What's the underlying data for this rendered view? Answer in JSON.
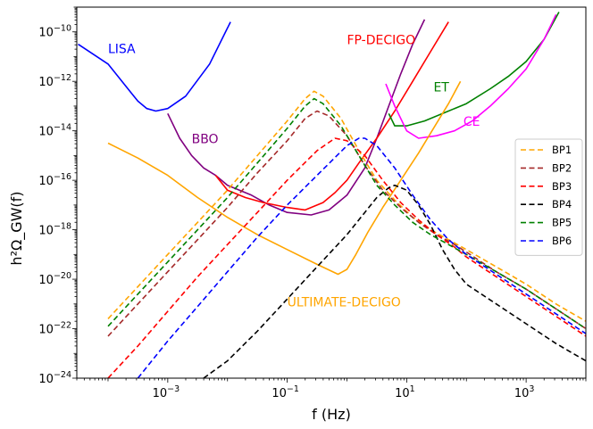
{
  "chart_data": {
    "type": "line",
    "xlabel": "f (Hz)",
    "ylabel": "h²Ω_GW(f)",
    "xscale": "log",
    "yscale": "log",
    "xlim": [
      3e-05,
      10000
    ],
    "ylim": [
      1e-24,
      1e-09
    ],
    "xticks": [
      {
        "value": 0.001,
        "base": "10",
        "exp": "−3"
      },
      {
        "value": 0.1,
        "base": "10",
        "exp": "−1"
      },
      {
        "value": 10,
        "base": "10",
        "exp": "1"
      },
      {
        "value": 1000,
        "base": "10",
        "exp": "3"
      }
    ],
    "yticks": [
      {
        "value": 1e-24,
        "base": "10",
        "exp": "−24"
      },
      {
        "value": 1e-22,
        "base": "10",
        "exp": "−22"
      },
      {
        "value": 1e-20,
        "base": "10",
        "exp": "−20"
      },
      {
        "value": 1e-18,
        "base": "10",
        "exp": "−18"
      },
      {
        "value": 1e-16,
        "base": "10",
        "exp": "−16"
      },
      {
        "value": 1e-14,
        "base": "10",
        "exp": "−14"
      },
      {
        "value": 1e-12,
        "base": "10",
        "exp": "−12"
      },
      {
        "value": 1e-10,
        "base": "10",
        "exp": "−10"
      }
    ],
    "legend_position": "center-right",
    "series": [
      {
        "name": "LISA",
        "label": "LISA",
        "color": "#0000ff",
        "style": "solid",
        "log10_x": [
          -4.5,
          -4.0,
          -3.6,
          -3.5,
          -3.35,
          -3.2,
          -3.0,
          -2.7,
          -2.3,
          -1.95
        ],
        "log10_y": [
          -10.5,
          -11.3,
          -12.5,
          -12.8,
          -13.1,
          -13.2,
          -13.1,
          -12.6,
          -11.3,
          -9.6
        ]
      },
      {
        "name": "BBO",
        "label": "BBO",
        "color": "#800080",
        "style": "solid",
        "log10_x": [
          -3.0,
          -2.8,
          -2.6,
          -2.4,
          -2.2,
          -2.0,
          -1.6,
          -1.3,
          -1.0,
          -0.6,
          -0.3,
          0.0,
          0.3,
          0.5,
          0.7,
          0.9,
          1.1,
          1.3
        ],
        "log10_y": [
          -13.3,
          -14.3,
          -15.0,
          -15.5,
          -15.8,
          -16.2,
          -16.6,
          -17.0,
          -17.3,
          -17.4,
          -17.2,
          -16.6,
          -15.5,
          -14.3,
          -13.0,
          -11.7,
          -10.5,
          -9.5
        ]
      },
      {
        "name": "FP-DECIGO",
        "label": "FP-DECIGO",
        "color": "#ff0000",
        "style": "solid",
        "log10_x": [
          -2.2,
          -2.0,
          -1.7,
          -1.4,
          -1.0,
          -0.7,
          -0.4,
          -0.2,
          0.0,
          0.2,
          0.5,
          0.8,
          1.1,
          1.4,
          1.7
        ],
        "log10_y": [
          -15.8,
          -16.4,
          -16.7,
          -16.9,
          -17.1,
          -17.2,
          -16.9,
          -16.5,
          -16.0,
          -15.3,
          -14.3,
          -13.2,
          -12.0,
          -10.8,
          -9.6
        ]
      },
      {
        "name": "ET",
        "label": "ET",
        "color": "#008000",
        "style": "solid",
        "log10_x": [
          0.7,
          0.8,
          1.0,
          1.3,
          1.6,
          2.0,
          2.4,
          2.7,
          3.0,
          3.3,
          3.55
        ],
        "log10_y": [
          -13.3,
          -13.8,
          -13.8,
          -13.6,
          -13.3,
          -12.9,
          -12.3,
          -11.8,
          -11.2,
          -10.3,
          -9.2
        ]
      },
      {
        "name": "CE",
        "label": "CE",
        "color": "#ff00ff",
        "style": "solid",
        "log10_x": [
          0.65,
          0.8,
          1.0,
          1.2,
          1.5,
          1.8,
          2.1,
          2.4,
          2.7,
          3.0,
          3.3,
          3.5
        ],
        "log10_y": [
          -12.1,
          -13.0,
          -14.0,
          -14.3,
          -14.2,
          -14.0,
          -13.6,
          -13.0,
          -12.3,
          -11.5,
          -10.3,
          -9.3
        ]
      },
      {
        "name": "ULTIMATE-DECIGO",
        "label": "ULTIMATE-DECIGO",
        "color": "#ffa500",
        "style": "solid",
        "log10_x": [
          -4.0,
          -3.5,
          -3.0,
          -2.5,
          -2.0,
          -1.5,
          -1.0,
          -0.5,
          -0.15,
          0.0,
          0.15,
          0.35,
          0.6,
          0.9,
          1.2,
          1.5,
          1.7,
          1.9
        ],
        "log10_y": [
          -14.5,
          -15.1,
          -15.8,
          -16.7,
          -17.5,
          -18.2,
          -18.8,
          -19.4,
          -19.8,
          -19.6,
          -19.0,
          -18.1,
          -17.1,
          -16.0,
          -14.9,
          -13.7,
          -12.9,
          -12.0
        ]
      },
      {
        "name": "BP1",
        "label": "BP1",
        "color": "#ffa500",
        "style": "dashed",
        "log10_x": [
          -4.0,
          -3.5,
          -3.0,
          -2.5,
          -2.0,
          -1.5,
          -1.0,
          -0.7,
          -0.55,
          -0.4,
          -0.1,
          0.2,
          0.5,
          0.8,
          1.1,
          1.4,
          1.7,
          2.0,
          2.5,
          3.0,
          3.5,
          4.0
        ],
        "log10_y": [
          -21.6,
          -20.3,
          -19.0,
          -17.7,
          -16.4,
          -15.0,
          -13.6,
          -12.7,
          -12.4,
          -12.6,
          -13.5,
          -14.8,
          -16.0,
          -16.8,
          -17.5,
          -18.0,
          -18.4,
          -18.8,
          -19.5,
          -20.2,
          -21.0,
          -21.7
        ]
      },
      {
        "name": "BP2",
        "label": "BP2",
        "color": "#a52a2a",
        "style": "dashed",
        "log10_x": [
          -4.0,
          -3.5,
          -3.0,
          -2.5,
          -2.0,
          -1.5,
          -1.0,
          -0.7,
          -0.5,
          -0.3,
          0.0,
          0.3,
          0.6,
          0.9,
          1.2,
          1.5,
          1.8,
          2.0,
          2.5,
          3.0,
          3.5,
          4.0
        ],
        "log10_y": [
          -22.3,
          -21.0,
          -19.7,
          -18.4,
          -17.1,
          -15.7,
          -14.4,
          -13.5,
          -13.2,
          -13.4,
          -14.2,
          -15.4,
          -16.4,
          -17.1,
          -17.7,
          -18.2,
          -18.6,
          -18.9,
          -19.7,
          -20.4,
          -21.2,
          -22.0
        ]
      },
      {
        "name": "BP3",
        "label": "BP3",
        "color": "#ff0000",
        "style": "dashed",
        "log10_x": [
          -4.0,
          -3.5,
          -3.0,
          -2.5,
          -2.0,
          -1.5,
          -1.0,
          -0.5,
          -0.2,
          0.0,
          0.3,
          0.6,
          0.9,
          1.2,
          1.5,
          1.8,
          2.0,
          2.5,
          3.0,
          3.5,
          4.0
        ],
        "log10_y": [
          -24.0,
          -22.7,
          -21.3,
          -19.9,
          -18.6,
          -17.3,
          -16.0,
          -14.8,
          -14.3,
          -14.4,
          -15.0,
          -16.0,
          -16.9,
          -17.6,
          -18.2,
          -18.7,
          -19.1,
          -19.9,
          -20.7,
          -21.5,
          -22.3
        ]
      },
      {
        "name": "BP4",
        "label": "BP4",
        "color": "#000000",
        "style": "dashed",
        "log10_x": [
          -2.4,
          -2.0,
          -1.5,
          -1.0,
          -0.5,
          0.0,
          0.3,
          0.5,
          0.7,
          0.8,
          1.0,
          1.2,
          1.4,
          1.6,
          1.8,
          2.0,
          2.5,
          3.0,
          3.5,
          4.0
        ],
        "log10_y": [
          -24.0,
          -23.3,
          -22.1,
          -20.8,
          -19.5,
          -18.2,
          -17.3,
          -16.7,
          -16.3,
          -16.2,
          -16.4,
          -17.0,
          -17.8,
          -18.8,
          -19.6,
          -20.2,
          -21.0,
          -21.8,
          -22.6,
          -23.3
        ]
      },
      {
        "name": "BP5",
        "label": "BP5",
        "color": "#008000",
        "style": "dashed",
        "log10_x": [
          -4.0,
          -3.5,
          -3.0,
          -2.5,
          -2.0,
          -1.5,
          -1.0,
          -0.7,
          -0.55,
          -0.4,
          -0.1,
          0.2,
          0.5,
          0.8,
          1.1,
          1.4,
          1.7,
          2.0,
          2.5,
          3.0,
          3.5,
          4.0
        ],
        "log10_y": [
          -21.9,
          -20.6,
          -19.3,
          -18.0,
          -16.7,
          -15.3,
          -13.9,
          -13.0,
          -12.7,
          -12.9,
          -13.8,
          -15.0,
          -16.2,
          -17.0,
          -17.7,
          -18.2,
          -18.6,
          -19.0,
          -19.7,
          -20.4,
          -21.2,
          -22.0
        ]
      },
      {
        "name": "BP6",
        "label": "BP6",
        "color": "#0000ff",
        "style": "dashed",
        "log10_x": [
          -3.5,
          -3.0,
          -2.5,
          -2.0,
          -1.5,
          -1.0,
          -0.5,
          0.0,
          0.2,
          0.3,
          0.5,
          0.8,
          1.1,
          1.4,
          1.7,
          2.0,
          2.5,
          3.0,
          3.5,
          4.0
        ],
        "log10_y": [
          -24.0,
          -22.5,
          -21.1,
          -19.7,
          -18.3,
          -17.0,
          -15.8,
          -14.6,
          -14.3,
          -14.3,
          -14.6,
          -15.5,
          -16.6,
          -17.6,
          -18.4,
          -19.0,
          -19.8,
          -20.6,
          -21.4,
          -22.2
        ]
      }
    ],
    "annotations": [
      {
        "text": "LISA",
        "color": "#0000ff",
        "log10_x": -4.0,
        "log10_y": -10.85
      },
      {
        "text": "BBO",
        "color": "#800080",
        "log10_x": -2.6,
        "log10_y": -14.5
      },
      {
        "text": "FP-DECIGO",
        "color": "#ff0000",
        "log10_x": 0.0,
        "log10_y": -10.5
      },
      {
        "text": "ET",
        "color": "#008000",
        "log10_x": 1.45,
        "log10_y": -12.4
      },
      {
        "text": "CE",
        "color": "#ff00ff",
        "log10_x": 1.95,
        "log10_y": -13.8
      },
      {
        "text": "ULTIMATE-DECIGO",
        "color": "#ffa500",
        "log10_x": -1.0,
        "log10_y": -21.1
      }
    ]
  }
}
